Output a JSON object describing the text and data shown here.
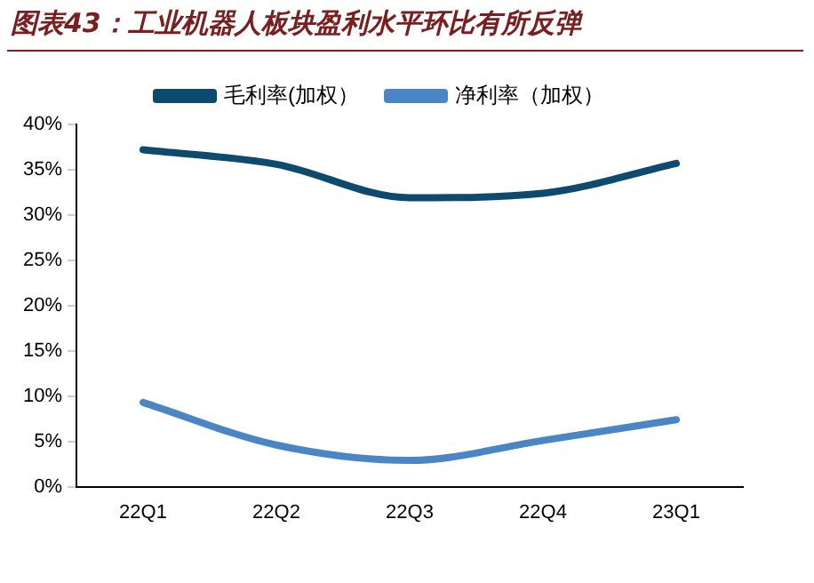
{
  "chart_data": {
    "type": "line",
    "title": "图表43：工业机器人板块盈利水平环比有所反弹",
    "categories": [
      "22Q1",
      "22Q2",
      "22Q3",
      "22Q4",
      "23Q1"
    ],
    "series": [
      {
        "name": "毛利率(加权）",
        "color": "#0d4a6e",
        "values": [
          37.2,
          35.6,
          31.9,
          32.4,
          35.7
        ]
      },
      {
        "name": "净利率（加权）",
        "color": "#4a86c5",
        "values": [
          9.3,
          4.6,
          2.9,
          5.1,
          7.4
        ]
      }
    ],
    "ylim": [
      0,
      40
    ],
    "yticks": [
      {
        "value": 0,
        "label": "0%"
      },
      {
        "value": 5,
        "label": "5%"
      },
      {
        "value": 10,
        "label": "10%"
      },
      {
        "value": 15,
        "label": "15%"
      },
      {
        "value": 20,
        "label": "20%"
      },
      {
        "value": 25,
        "label": "25%"
      },
      {
        "value": 30,
        "label": "30%"
      },
      {
        "value": 35,
        "label": "35%"
      },
      {
        "value": 40,
        "label": "40%"
      }
    ],
    "grid": false,
    "legend": "top",
    "marker": "none",
    "line_style": "solid"
  }
}
